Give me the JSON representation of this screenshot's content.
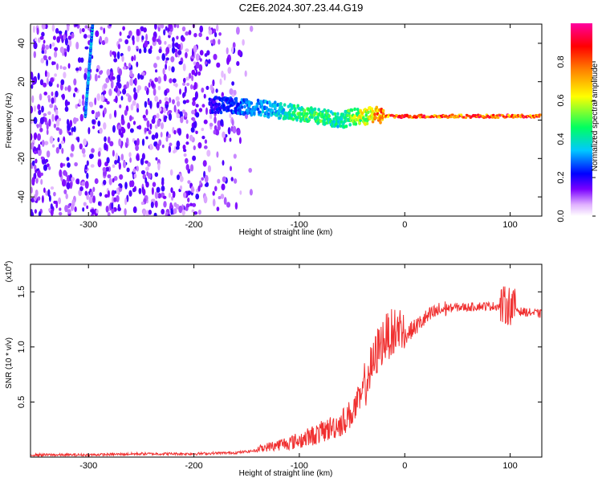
{
  "title": "C2E6.2024.307.23.44.G19",
  "chart_data": [
    {
      "type": "heatmap",
      "xlabel": "Height of straight line (km)",
      "ylabel": "Frequency (Hz)",
      "xlim": [
        -355,
        130
      ],
      "ylim": [
        -50,
        50
      ],
      "xticks": [
        -300,
        -200,
        -100,
        0,
        100
      ],
      "yticks": [
        -40,
        -20,
        0,
        20,
        40
      ],
      "colorbar": {
        "label": "Normalized spectral amplitude",
        "range": [
          0.0,
          1.0
        ],
        "ticks": [
          0.0,
          0.2,
          0.4,
          0.6,
          0.8
        ],
        "colors": [
          "#ffffff",
          "#e0b0ff",
          "#7a00ff",
          "#0000ff",
          "#00c8ff",
          "#00ff60",
          "#ffff00",
          "#ff8000",
          "#ff0000",
          "#ff00a0"
        ]
      },
      "signal_track": {
        "x": [
          -185,
          -150,
          -120,
          -105,
          -95,
          -85,
          -70,
          -60,
          -48,
          -40,
          -30,
          -20,
          0,
          50,
          100,
          130
        ],
        "y": [
          8,
          7,
          5,
          4,
          3,
          2,
          1,
          0,
          2,
          1,
          3,
          2,
          2,
          2,
          2,
          2
        ],
        "amplitude": [
          0.2,
          0.3,
          0.35,
          0.45,
          0.5,
          0.5,
          0.45,
          0.4,
          0.55,
          0.6,
          0.7,
          0.8,
          0.85,
          0.85,
          0.85,
          0.8
        ]
      },
      "diagonal_trace": {
        "x": [
          -303,
          -296
        ],
        "y": [
          2,
          50
        ],
        "amplitude": 0.3
      }
    },
    {
      "type": "line",
      "xlabel": "Height of straight line (km)",
      "ylabel": "SNR (10 * v/v)",
      "scale_label": "(x10",
      "scale_exp": "4",
      "xlim": [
        -355,
        130
      ],
      "ylim": [
        0,
        1.75
      ],
      "xticks": [
        -300,
        -200,
        -100,
        0,
        100
      ],
      "yticks": [
        0.5,
        1.0,
        1.5
      ],
      "color": "#f03030",
      "series": [
        {
          "x": [
            -355,
            -300,
            -250,
            -200,
            -160,
            -140,
            -120,
            -100,
            -80,
            -70,
            -60,
            -50,
            -40,
            -35,
            -30,
            -25,
            -20,
            -15,
            -10,
            -5,
            0,
            10,
            20,
            30,
            40,
            50,
            60,
            70,
            80,
            90,
            100,
            110,
            120,
            130
          ],
          "values": [
            0.02,
            0.02,
            0.03,
            0.03,
            0.04,
            0.06,
            0.09,
            0.12,
            0.18,
            0.22,
            0.26,
            0.35,
            0.5,
            0.65,
            0.75,
            0.9,
            0.98,
            1.02,
            1.05,
            1.08,
            1.1,
            1.18,
            1.26,
            1.32,
            1.35,
            1.36,
            1.36,
            1.37,
            1.37,
            1.37,
            1.38,
            1.32,
            1.31,
            1.3
          ]
        }
      ]
    }
  ],
  "xtick_labels": [
    "-300",
    "-200",
    "-100",
    "0",
    "100"
  ],
  "heat_ytick_labels": [
    "-40",
    "-20",
    "0",
    "20",
    "40"
  ],
  "colorbar_tick_labels": [
    "0.0",
    "0.2",
    "0.4",
    "0.6",
    "0.8"
  ],
  "snr_ytick_labels": [
    "0.5",
    "1.0",
    "1.5"
  ]
}
